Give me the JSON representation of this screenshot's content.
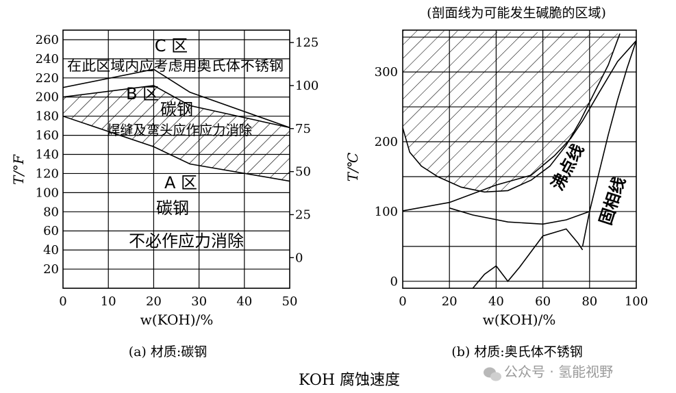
{
  "figure": {
    "main_caption": "KOH 腐蚀速度",
    "watermark": "公众号 · 氢能视野"
  },
  "chart_data": [
    {
      "type": "area",
      "panel_caption": "(a) 材质:碳钢",
      "xlabel": "w(KOH)/%",
      "ylabel_left": "T/°F",
      "xlim": [
        0,
        50
      ],
      "ylim_left": [
        0,
        270
      ],
      "ylim_right_c": [
        -17.8,
        132.2
      ],
      "x_ticks": [
        0,
        10,
        20,
        30,
        40,
        50
      ],
      "y_ticks_left": [
        20,
        40,
        60,
        80,
        100,
        120,
        140,
        160,
        180,
        200,
        220,
        240,
        260
      ],
      "y_ticks_right": [
        0,
        25,
        50,
        75,
        100,
        125
      ],
      "grid": true,
      "boundary_upper": {
        "x": [
          0,
          20,
          28,
          50
        ],
        "y": [
          210,
          229,
          205,
          168
        ]
      },
      "boundary_lower": {
        "x": [
          0,
          20,
          28,
          50
        ],
        "y": [
          180,
          148,
          130,
          112
        ]
      },
      "hatched_region": {
        "x": [
          0,
          20,
          28,
          50
        ],
        "y_low": [
          180,
          148,
          130,
          112
        ],
        "y_high": [
          200,
          212,
          191,
          168
        ]
      },
      "regions": [
        {
          "name": "C 区",
          "text": "在此区域内应考虑用奥氏体不锈钢"
        },
        {
          "name": "B 区",
          "text": "碳钢",
          "note": "焊缝及弯头应作应力消除"
        },
        {
          "name": "A 区",
          "text": "碳钢",
          "note": "不必作应力消除"
        }
      ]
    },
    {
      "type": "area",
      "panel_caption": "(b) 材质:奥氏体不锈钢",
      "title": "(剖面线为可能发生碱脆的区域)",
      "xlabel": "w(KOH)/%",
      "ylabel": "T/℃",
      "xlim": [
        0,
        100
      ],
      "ylim": [
        -10,
        360
      ],
      "x_ticks": [
        0,
        20,
        40,
        60,
        80,
        100
      ],
      "y_ticks": [
        0,
        100,
        200,
        300
      ],
      "grid": true,
      "boiling_point_curve": {
        "label": "沸点线",
        "x": [
          0,
          20,
          40,
          55,
          65,
          72,
          77,
          84,
          92,
          100
        ],
        "y": [
          101,
          113,
          138,
          152,
          180,
          205,
          230,
          270,
          315,
          345
        ]
      },
      "solid_phase_line": {
        "label": "固相线",
        "x": [
          77,
          80,
          84,
          88,
          92,
          96,
          100
        ],
        "y": [
          50,
          100,
          155,
          210,
          260,
          305,
          345
        ]
      },
      "hatched_region_edge": {
        "x": [
          0,
          3,
          8,
          15,
          25,
          35,
          45,
          55,
          63,
          70,
          76,
          82,
          88,
          93
        ],
        "y": [
          220,
          185,
          165,
          150,
          135,
          128,
          130,
          145,
          165,
          195,
          230,
          270,
          310,
          355
        ]
      },
      "lower_curve": {
        "x": [
          20,
          30,
          45,
          60,
          70,
          80
        ],
        "y": [
          105,
          95,
          85,
          82,
          88,
          100
        ]
      },
      "ice_curve": {
        "x": [
          30,
          35,
          40,
          45,
          50,
          60,
          70,
          75,
          77
        ],
        "y": [
          -10,
          10,
          22,
          0,
          20,
          65,
          75,
          55,
          45
        ]
      }
    }
  ]
}
